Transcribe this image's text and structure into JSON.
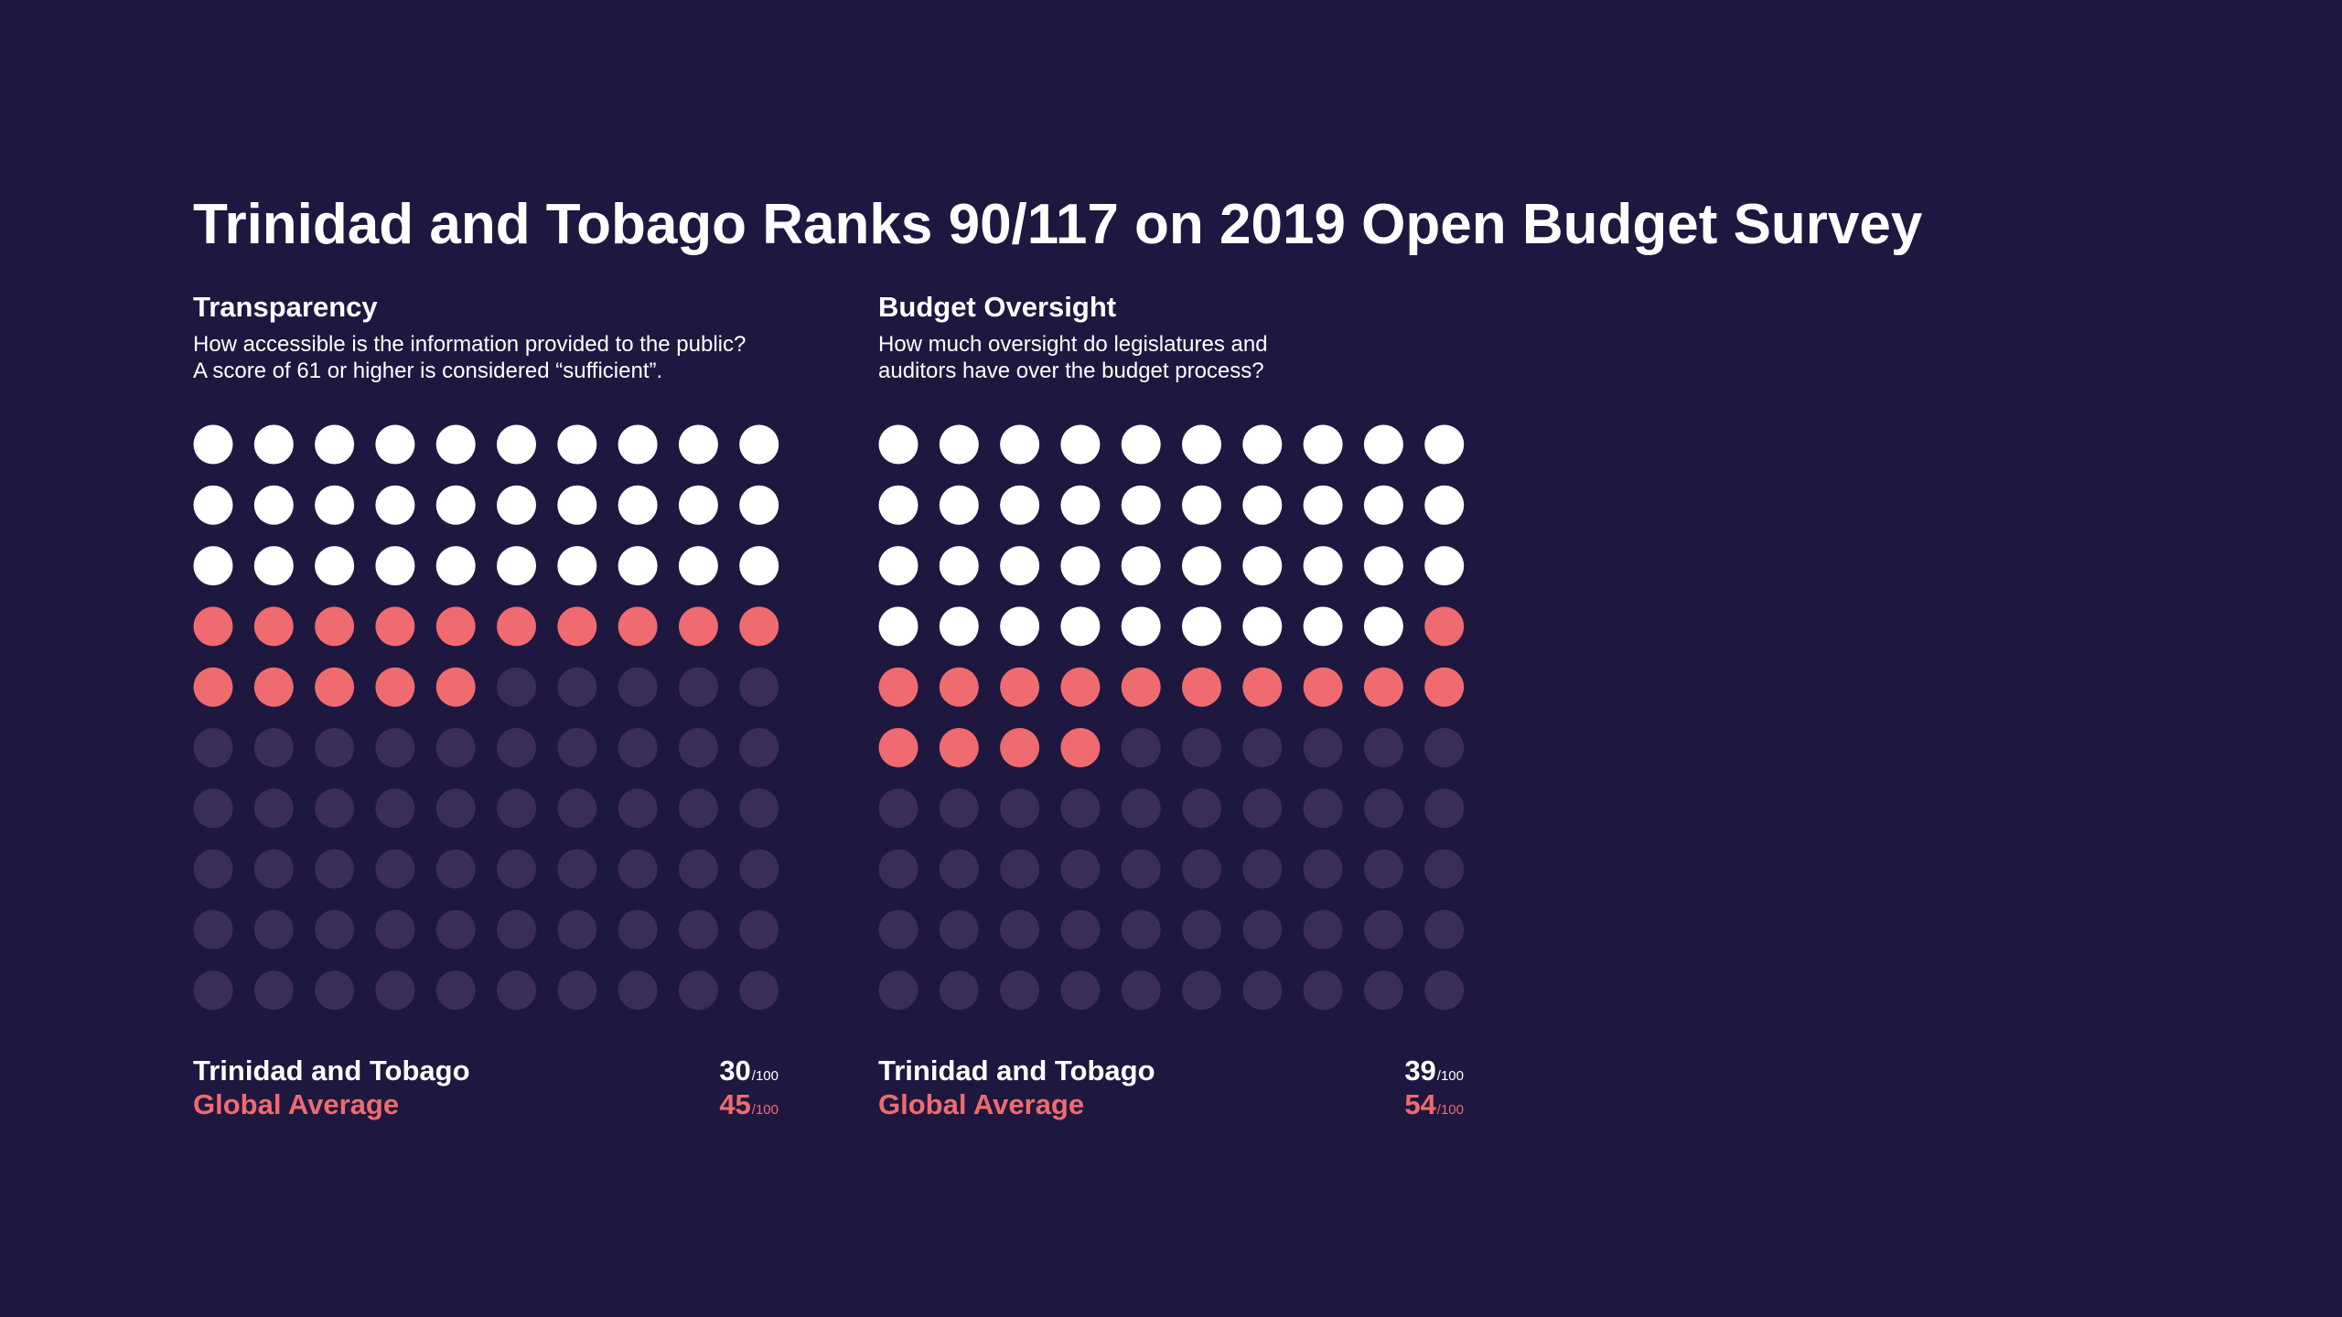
{
  "title": "Trinidad and Tobago Ranks 90/117 on 2019 Open Budget Survey",
  "colors": {
    "background": "#1e1840",
    "country": "#ffffff",
    "global": "#ef6b6f",
    "empty": "#3a2e58"
  },
  "chart_data": [
    {
      "type": "waffle",
      "title": "Transparency",
      "subtitle": [
        "How accessible is the information provided to the public?",
        "A score of 61 or higher is considered “sufficient”."
      ],
      "grid": [
        10,
        10
      ],
      "series": [
        {
          "name": "Trinidad and Tobago",
          "value": 30,
          "max_label": "/100"
        },
        {
          "name": "Global Average",
          "value": 45,
          "max_label": "/100"
        }
      ]
    },
    {
      "type": "waffle",
      "title": "Budget Oversight",
      "subtitle": [
        "How much oversight do legislatures and",
        "auditors have over the budget process?"
      ],
      "grid": [
        10,
        10
      ],
      "series": [
        {
          "name": "Trinidad and Tobago",
          "value": 39,
          "max_label": "/100"
        },
        {
          "name": "Global Average",
          "value": 54,
          "max_label": "/100"
        }
      ]
    }
  ]
}
